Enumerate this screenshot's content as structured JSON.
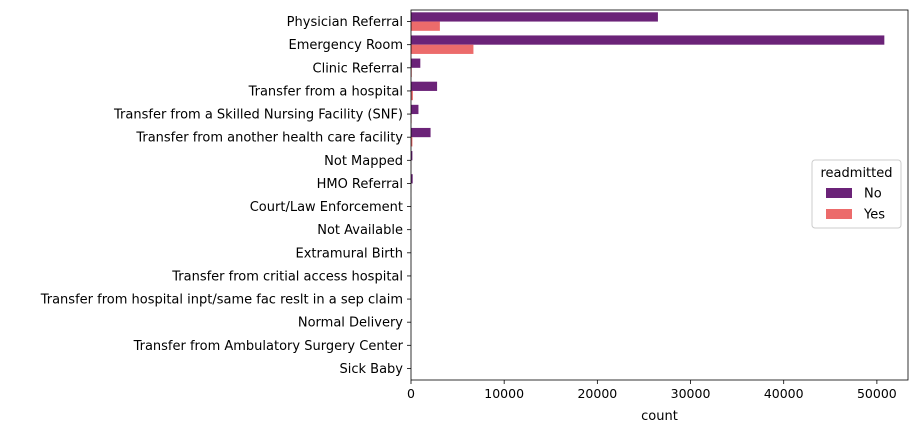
{
  "chart_data": {
    "type": "bar",
    "orientation": "horizontal",
    "categories": [
      "Physician Referral",
      "Emergency Room",
      "Clinic Referral",
      "Transfer from a hospital",
      "Transfer from a Skilled Nursing Facility (SNF)",
      "Transfer from another health care facility",
      "Not Mapped",
      "HMO Referral",
      "Court/Law Enforcement",
      "Not Available",
      "Extramural Birth",
      "Transfer from critial access hospital",
      "Transfer from hospital inpt/same fac reslt in a sep claim",
      "Normal Delivery",
      "Transfer from Ambulatory Surgery Center",
      "Sick Baby"
    ],
    "series": [
      {
        "name": "No",
        "color": "#6b2378",
        "values": [
          26500,
          50800,
          1000,
          2800,
          800,
          2100,
          150,
          180,
          10,
          5,
          3,
          5,
          2,
          1,
          2,
          1
        ]
      },
      {
        "name": "Yes",
        "color": "#ec6b6b",
        "values": [
          3100,
          6700,
          80,
          200,
          60,
          150,
          20,
          12,
          2,
          1,
          1,
          1,
          1,
          1,
          0,
          0
        ]
      }
    ],
    "xlabel": "count",
    "ylabel": "",
    "xlim": [
      0,
      53340
    ],
    "xticks": [
      "0",
      "10000",
      "20000",
      "30000",
      "40000",
      "50000"
    ],
    "legend": {
      "title": "readmitted",
      "position": "center-right",
      "entries": [
        "No",
        "Yes"
      ]
    },
    "grid": false
  }
}
